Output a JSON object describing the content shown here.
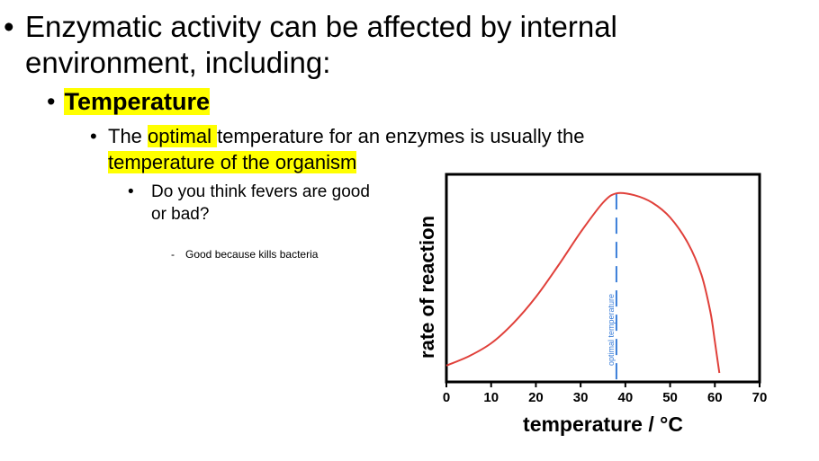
{
  "slide": {
    "bullet1": "Enzymatic activity can be affected by internal environment, including:",
    "bullet2": "Temperature",
    "bullet3": {
      "part1": "The ",
      "highlight1": "optimal ",
      "part2": "temperature for an enzymes is usually the ",
      "highlight2": "temperature of the organism"
    },
    "bullet4": "Do you think fevers are good or bad?",
    "bullet5": "Good because kills bacteria"
  },
  "colors": {
    "highlight": "#ffff00",
    "curve": "#e0403a",
    "optimal_line": "#3a7dd8"
  },
  "chart_data": {
    "type": "line",
    "xlabel": "temperature / °C",
    "ylabel": "rate of reaction",
    "xlim": [
      0,
      70
    ],
    "xticks": [
      "0",
      "10",
      "20",
      "30",
      "40",
      "50",
      "60",
      "70"
    ],
    "y_tick_labels": false,
    "series": [
      {
        "x": [
          0,
          5,
          10,
          15,
          20,
          25,
          30,
          35,
          38,
          42,
          46,
          50,
          54,
          57,
          59,
          60,
          61
        ],
        "y": [
          0.04,
          0.09,
          0.16,
          0.27,
          0.41,
          0.58,
          0.76,
          0.92,
          0.97,
          0.96,
          0.92,
          0.84,
          0.7,
          0.53,
          0.33,
          0.17,
          0
        ]
      }
    ],
    "annotations": [
      {
        "x": 38,
        "text": "optimal temperature"
      }
    ]
  }
}
